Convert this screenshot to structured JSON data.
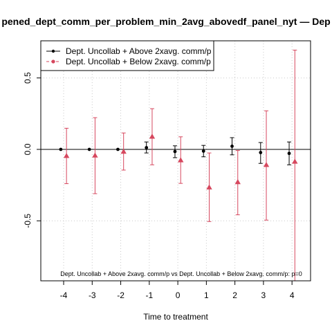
{
  "chart_data": {
    "type": "scatter",
    "title": "pened_dept_comm_per_problem_min_2avg_abovedf_panel_nyt — Dep",
    "xlabel": "Time to treatment",
    "ylabel": "",
    "x": [
      -4,
      -3,
      -2,
      -1,
      0,
      1,
      2,
      3,
      4
    ],
    "x_tick_labels": [
      "-4",
      "-3",
      "-2",
      "-1",
      "0",
      "1",
      "2",
      "3",
      "4"
    ],
    "y_ticks": [
      -0.5,
      0.0,
      0.5
    ],
    "y_tick_labels": [
      "-0.5",
      "0.0",
      "0.5"
    ],
    "xlim": [
      -4.8,
      4.65
    ],
    "ylim": [
      -0.92,
      0.76
    ],
    "grid": true,
    "legend_position": "top-left",
    "series": [
      {
        "name": "Dept. Uncollab + Above 2xavg. comm/p",
        "color": "#000000",
        "marker": "circle",
        "offset": -0.1,
        "values": [
          0.0,
          0.0,
          0.0,
          0.012,
          -0.015,
          -0.012,
          0.022,
          -0.022,
          -0.028
        ],
        "ci_low": [
          null,
          null,
          null,
          -0.025,
          -0.058,
          -0.052,
          -0.038,
          -0.098,
          -0.108
        ],
        "ci_high": [
          null,
          null,
          null,
          0.052,
          0.025,
          0.028,
          0.082,
          0.048,
          0.052
        ]
      },
      {
        "name": "Dept. Uncollab + Below 2xavg. comm/p",
        "color": "#d6475e",
        "marker": "triangle",
        "offset": 0.1,
        "values": [
          -0.045,
          -0.042,
          -0.015,
          0.09,
          -0.075,
          -0.265,
          -0.228,
          -0.108,
          -0.085
        ],
        "ci_low": [
          -0.24,
          -0.31,
          -0.145,
          -0.108,
          -0.238,
          -0.505,
          -0.458,
          -0.495,
          -0.92
        ],
        "ci_high": [
          0.148,
          0.222,
          0.115,
          0.285,
          0.088,
          -0.025,
          -0.008,
          0.27,
          0.695
        ]
      }
    ],
    "annotation": "Dept. Uncollab + Above 2xavg. comm/p vs Dept. Uncollab + Below 2xavg. comm/p: p=0"
  }
}
